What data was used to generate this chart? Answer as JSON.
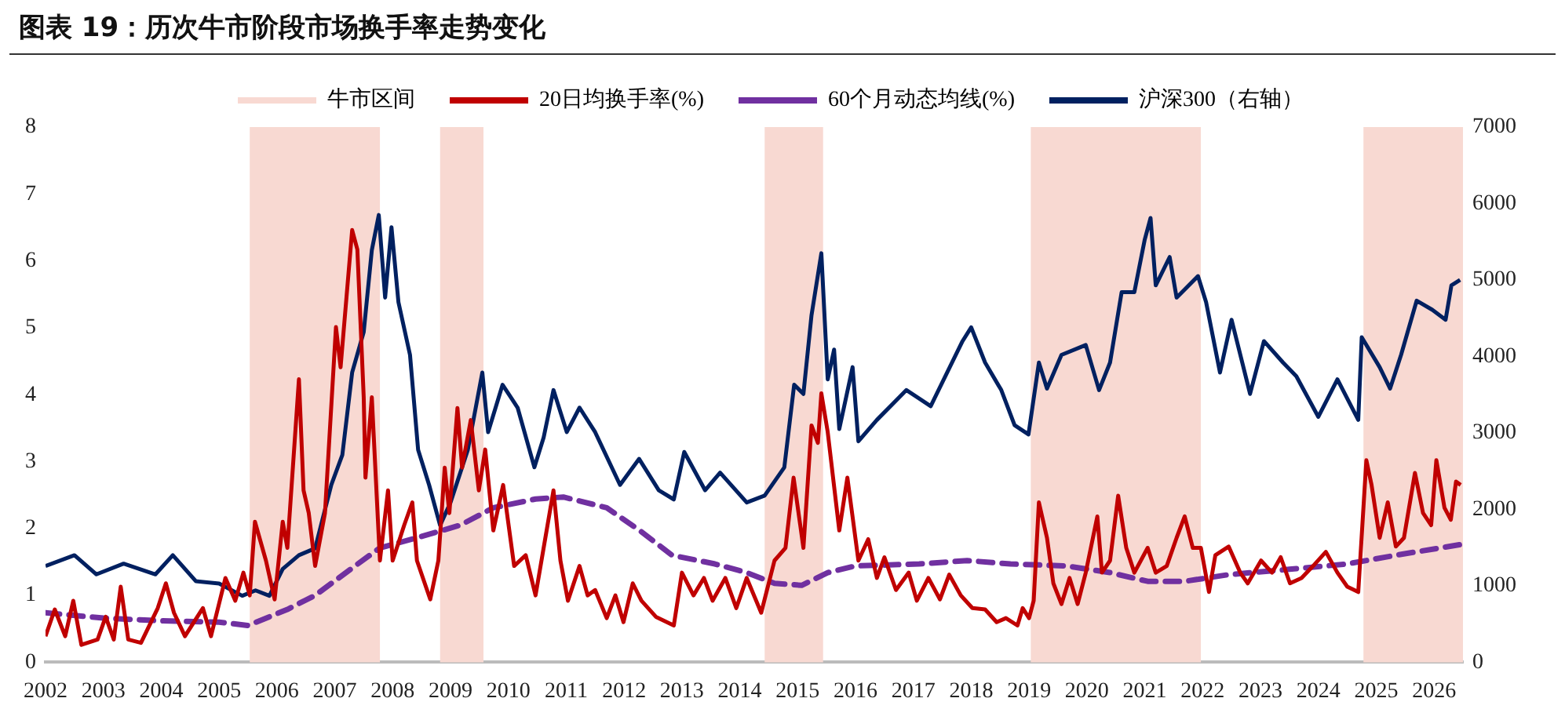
{
  "chart_data": {
    "type": "line",
    "title": "图表 19：历次牛市阶段市场换手率走势变化",
    "xlim": [
      2002,
      2026.5
    ],
    "xticks": [
      2002,
      2003,
      2004,
      2005,
      2006,
      2007,
      2008,
      2009,
      2010,
      2011,
      2012,
      2013,
      2014,
      2015,
      2016,
      2017,
      2018,
      2019,
      2020,
      2021,
      2022,
      2023,
      2024,
      2025,
      2026
    ],
    "ylim": [
      0,
      8
    ],
    "yticks": [
      0,
      1,
      2,
      3,
      4,
      5,
      6,
      7,
      8
    ],
    "y2lim": [
      0,
      7000
    ],
    "y2ticks": [
      0,
      1000,
      2000,
      3000,
      4000,
      5000,
      6000,
      7000
    ],
    "grid": false,
    "legend": "top",
    "marker": "none",
    "bands": [
      {
        "axis": "x",
        "from": 2005.53,
        "to": 2007.78,
        "label": "牛市区间",
        "color": "#f8d9d2"
      },
      {
        "axis": "x",
        "from": 2008.82,
        "to": 2009.57,
        "color": "#f8d9d2"
      },
      {
        "axis": "x",
        "from": 2014.43,
        "to": 2015.44,
        "color": "#f8d9d2"
      },
      {
        "axis": "x",
        "from": 2019.03,
        "to": 2021.97,
        "color": "#f8d9d2"
      },
      {
        "axis": "x",
        "from": 2024.78,
        "to": 2026.5,
        "color": "#f8d9d2"
      }
    ],
    "series": [
      {
        "name": "20日均换手率(%)",
        "color": "#c00000",
        "line_style": "solid",
        "x": [
          2002.0,
          2002.16,
          2002.34,
          2002.48,
          2002.62,
          2002.9,
          2003.04,
          2003.18,
          2003.3,
          2003.43,
          2003.65,
          2003.94,
          2004.08,
          2004.22,
          2004.41,
          2004.72,
          2004.86,
          2005.11,
          2005.28,
          2005.42,
          2005.53,
          2005.62,
          2005.81,
          2005.96,
          2006.1,
          2006.18,
          2006.38,
          2006.46,
          2006.55,
          2006.66,
          2006.83,
          2007.02,
          2007.1,
          2007.3,
          2007.39,
          2007.5,
          2007.53,
          2007.64,
          2007.78,
          2007.92,
          2008.0,
          2008.2,
          2008.34,
          2008.42,
          2008.65,
          2008.79,
          2008.9,
          2008.98,
          2009.12,
          2009.2,
          2009.35,
          2009.49,
          2009.6,
          2009.74,
          2009.91,
          2010.1,
          2010.3,
          2010.47,
          2010.61,
          2010.78,
          2010.9,
          2011.03,
          2011.23,
          2011.37,
          2011.5,
          2011.7,
          2011.85,
          2011.99,
          2012.15,
          2012.3,
          2012.55,
          2012.86,
          2013.0,
          2013.2,
          2013.38,
          2013.53,
          2013.75,
          2013.94,
          2014.12,
          2014.37,
          2014.6,
          2014.79,
          2014.93,
          2015.1,
          2015.24,
          2015.35,
          2015.41,
          2015.52,
          2015.72,
          2015.86,
          2016.05,
          2016.22,
          2016.37,
          2016.5,
          2016.7,
          2016.92,
          2017.06,
          2017.26,
          2017.46,
          2017.62,
          2017.82,
          2018.02,
          2018.24,
          2018.44,
          2018.6,
          2018.8,
          2018.89,
          2019.0,
          2019.08,
          2019.17,
          2019.31,
          2019.42,
          2019.56,
          2019.7,
          2019.84,
          2019.98,
          2020.18,
          2020.26,
          2020.4,
          2020.54,
          2020.68,
          2020.82,
          2021.05,
          2021.19,
          2021.38,
          2021.55,
          2021.69,
          2021.83,
          2021.97,
          2022.11,
          2022.22,
          2022.45,
          2022.65,
          2022.78,
          2023.01,
          2023.2,
          2023.35,
          2023.51,
          2023.71,
          2023.91,
          2024.13,
          2024.33,
          2024.5,
          2024.69,
          2024.83,
          2024.92,
          2025.06,
          2025.2,
          2025.34,
          2025.48,
          2025.67,
          2025.81,
          2025.95,
          2026.04,
          2026.18,
          2026.29,
          2026.38,
          2026.46
        ],
        "values": [
          0.39,
          0.79,
          0.39,
          0.92,
          0.26,
          0.34,
          0.68,
          0.34,
          1.13,
          0.34,
          0.29,
          0.81,
          1.18,
          0.74,
          0.39,
          0.81,
          0.39,
          1.26,
          0.92,
          1.34,
          1.0,
          2.1,
          1.52,
          0.94,
          2.1,
          1.71,
          4.23,
          2.57,
          2.23,
          1.44,
          2.23,
          5.01,
          4.41,
          6.46,
          6.17,
          3.96,
          2.76,
          3.96,
          1.52,
          2.57,
          1.52,
          2.05,
          2.39,
          1.52,
          0.94,
          1.52,
          2.91,
          2.23,
          3.8,
          2.91,
          3.62,
          2.57,
          3.18,
          1.97,
          2.65,
          1.44,
          1.6,
          1.0,
          1.71,
          2.57,
          1.52,
          0.92,
          1.44,
          1.0,
          1.08,
          0.66,
          1.0,
          0.6,
          1.18,
          0.92,
          0.68,
          0.55,
          1.34,
          1.0,
          1.26,
          0.92,
          1.26,
          0.81,
          1.26,
          0.74,
          1.52,
          1.71,
          2.76,
          1.71,
          3.54,
          3.28,
          4.02,
          3.44,
          1.97,
          2.76,
          1.52,
          1.84,
          1.26,
          1.57,
          1.08,
          1.34,
          0.92,
          1.26,
          0.94,
          1.31,
          1.0,
          0.81,
          0.79,
          0.6,
          0.66,
          0.55,
          0.81,
          0.66,
          0.92,
          2.39,
          1.86,
          1.18,
          0.87,
          1.26,
          0.87,
          1.34,
          2.18,
          1.34,
          1.52,
          2.49,
          1.71,
          1.34,
          1.71,
          1.34,
          1.44,
          1.86,
          2.18,
          1.71,
          1.71,
          1.05,
          1.6,
          1.73,
          1.34,
          1.18,
          1.52,
          1.34,
          1.57,
          1.18,
          1.26,
          1.44,
          1.65,
          1.34,
          1.13,
          1.05,
          3.02,
          2.65,
          1.86,
          2.39,
          1.73,
          1.86,
          2.83,
          2.23,
          2.05,
          3.02,
          2.31,
          2.13,
          2.7,
          2.65
        ]
      },
      {
        "name": "60个月动态均线(%)",
        "color": "#7030a0",
        "line_style": "dashed",
        "x": [
          2002.0,
          2003.0,
          2004.0,
          2005.0,
          2005.5,
          2006.18,
          2006.66,
          2007.35,
          2007.78,
          2008.42,
          2009.17,
          2009.74,
          2010.47,
          2010.95,
          2011.7,
          2012.27,
          2012.83,
          2013.57,
          2014.12,
          2014.6,
          2015.07,
          2015.52,
          2016.0,
          2017.1,
          2017.93,
          2018.68,
          2019.65,
          2020.4,
          2021.05,
          2021.69,
          2022.45,
          2023.5,
          2024.5,
          2025.34,
          2026.46
        ],
        "values": [
          0.74,
          0.66,
          0.62,
          0.6,
          0.55,
          0.79,
          1.0,
          1.44,
          1.71,
          1.86,
          2.05,
          2.31,
          2.44,
          2.47,
          2.31,
          1.97,
          1.6,
          1.47,
          1.34,
          1.18,
          1.15,
          1.34,
          1.44,
          1.47,
          1.52,
          1.47,
          1.44,
          1.34,
          1.21,
          1.21,
          1.31,
          1.39,
          1.47,
          1.6,
          1.76
        ]
      },
      {
        "name": "沪深300（右轴）",
        "color": "#002060",
        "line_style": "solid",
        "axis": "y2",
        "x": [
          2002.0,
          2002.5,
          2002.88,
          2003.35,
          2003.9,
          2004.2,
          2004.6,
          2005.0,
          2005.4,
          2005.63,
          2005.87,
          2006.1,
          2006.38,
          2006.66,
          2006.94,
          2007.13,
          2007.3,
          2007.5,
          2007.64,
          2007.76,
          2007.87,
          2007.98,
          2008.1,
          2008.3,
          2008.44,
          2008.63,
          2008.82,
          2009.0,
          2009.3,
          2009.55,
          2009.65,
          2009.9,
          2010.16,
          2010.45,
          2010.61,
          2010.78,
          2011.01,
          2011.23,
          2011.5,
          2011.93,
          2012.26,
          2012.6,
          2012.86,
          2013.04,
          2013.4,
          2013.66,
          2014.12,
          2014.43,
          2014.77,
          2014.94,
          2015.1,
          2015.24,
          2015.41,
          2015.52,
          2015.63,
          2015.72,
          2015.95,
          2016.05,
          2016.37,
          2016.88,
          2017.3,
          2017.85,
          2018.0,
          2018.24,
          2018.52,
          2018.75,
          2018.99,
          2019.17,
          2019.31,
          2019.56,
          2019.98,
          2020.21,
          2020.4,
          2020.6,
          2020.82,
          2021.0,
          2021.1,
          2021.19,
          2021.43,
          2021.55,
          2021.92,
          2022.06,
          2022.3,
          2022.5,
          2022.82,
          2023.06,
          2023.39,
          2023.62,
          2024.0,
          2024.33,
          2024.69,
          2024.75,
          2025.06,
          2025.24,
          2025.43,
          2025.7,
          2025.97,
          2026.2,
          2026.3,
          2026.45
        ],
        "values": [
          1260,
          1400,
          1150,
          1290,
          1150,
          1400,
          1060,
          1030,
          870,
          940,
          870,
          1220,
          1400,
          1490,
          2320,
          2710,
          3790,
          4320,
          5390,
          5850,
          4770,
          5690,
          4710,
          4020,
          2780,
          2320,
          1790,
          2090,
          2780,
          3790,
          3010,
          3630,
          3330,
          2550,
          2940,
          3560,
          3010,
          3330,
          3010,
          2320,
          2660,
          2250,
          2130,
          2750,
          2250,
          2480,
          2090,
          2180,
          2550,
          3630,
          3510,
          4540,
          5350,
          3700,
          4090,
          3050,
          3860,
          2890,
          3170,
          3560,
          3350,
          4200,
          4380,
          3920,
          3560,
          3100,
          2980,
          3920,
          3580,
          4020,
          4150,
          3560,
          3920,
          4840,
          4840,
          5530,
          5810,
          4930,
          5300,
          4770,
          5050,
          4710,
          3790,
          4480,
          3510,
          4200,
          3920,
          3740,
          3210,
          3700,
          3170,
          4250,
          3860,
          3580,
          4020,
          4730,
          4610,
          4480,
          4930,
          5000
        ]
      }
    ]
  }
}
